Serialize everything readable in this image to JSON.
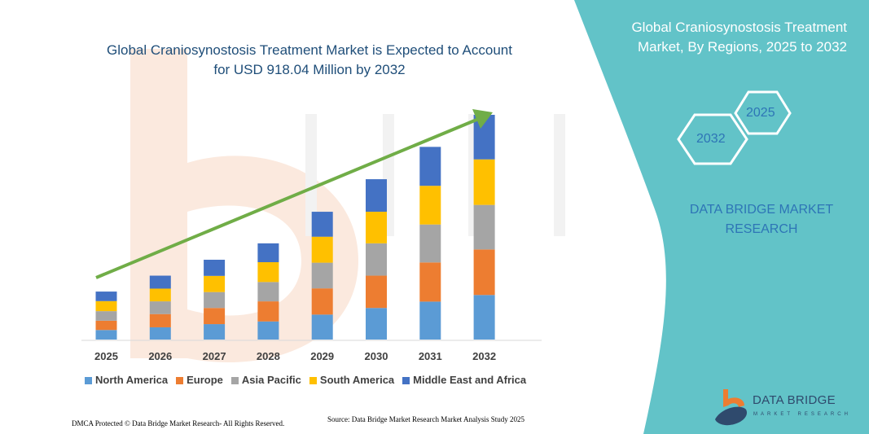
{
  "title": "Global Craniosynostosis Treatment Market is Expected to Account for USD 918.04 Million by 2032",
  "side_panel": {
    "title": "Global Craniosynostosis Treatment Market, By Regions, 2025 to 2032",
    "hex_years": [
      "2025",
      "2032"
    ],
    "brand_text": "DATA BRIDGE MARKET RESEARCH",
    "logo_text": "DATA BRIDGE",
    "logo_subtext": "MARKET RESEARCH",
    "color": "#62C3C8"
  },
  "footer": {
    "copyright": "DMCA Protected © Data Bridge Market Research-  All Rights Reserved.",
    "source": "Source: Data Bridge Market Research  Market Analysis Study 2025"
  },
  "chart_data": {
    "type": "bar",
    "stacked": true,
    "title": "Global Craniosynostosis Treatment Market is Expected to Account for USD 918.04 Million by 2032",
    "xlabel": "",
    "ylabel": "",
    "grid": false,
    "legend_position": "bottom",
    "trend_arrow": true,
    "categories": [
      "2025",
      "2026",
      "2027",
      "2028",
      "2029",
      "2030",
      "2031",
      "2032"
    ],
    "series": [
      {
        "name": "North America",
        "color": "#5B9BD5",
        "values": [
          39,
          50,
          63,
          74,
          102,
          129,
          155,
          182
        ]
      },
      {
        "name": "Europe",
        "color": "#ED7D31",
        "values": [
          38,
          54,
          66,
          82,
          107,
          132,
          160,
          186
        ]
      },
      {
        "name": "Asia Pacific",
        "color": "#A5A5A5",
        "values": [
          39,
          52,
          65,
          79,
          105,
          132,
          155,
          182
        ]
      },
      {
        "name": "South America",
        "color": "#FFC000",
        "values": [
          41,
          52,
          66,
          81,
          106,
          129,
          158,
          186
        ]
      },
      {
        "name": "Middle East and Africa",
        "color": "#4472C4",
        "values": [
          39,
          53,
          66,
          77,
          102,
          133,
          159,
          182
        ]
      }
    ]
  }
}
